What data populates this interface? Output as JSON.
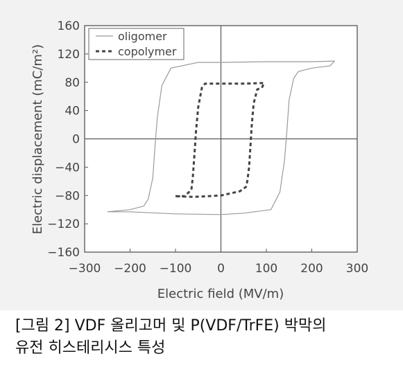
{
  "chart_data": {
    "type": "line",
    "xlabel": "Electric field (MV/m)",
    "ylabel": "Electric displacement (mC/m²)",
    "xlim": [
      -300,
      300
    ],
    "ylim": [
      -160,
      160
    ],
    "x_ticks": [
      "−300",
      "−200",
      "−100",
      "0",
      "100",
      "200",
      "300"
    ],
    "y_ticks": [
      "160",
      "120",
      "80",
      "40",
      "0",
      "−40",
      "−80",
      "−120",
      "−160"
    ],
    "legend_position": "top-left",
    "series": [
      {
        "name": "oligomer",
        "style": "solid",
        "color": "#999999",
        "x": [
          -250,
          -200,
          -170,
          -160,
          -150,
          -145,
          -140,
          -130,
          -110,
          -50,
          0,
          100,
          200,
          250,
          240,
          200,
          170,
          160,
          150,
          145,
          140,
          130,
          110,
          50,
          0,
          -100,
          -200,
          -250
        ],
        "y": [
          -103,
          -100,
          -95,
          -85,
          -55,
          -10,
          30,
          75,
          100,
          108,
          108,
          109,
          109,
          110,
          103,
          100,
          95,
          85,
          55,
          10,
          -30,
          -75,
          -100,
          -105,
          -107,
          -106,
          -103,
          -103
        ]
      },
      {
        "name": "copolymer",
        "style": "dashed",
        "color": "#444444",
        "x": [
          -100,
          -80,
          -65,
          -62,
          -58,
          -55,
          -50,
          -42,
          -35,
          0,
          50,
          95,
          90,
          80,
          72,
          68,
          65,
          62,
          58,
          55,
          50,
          42,
          0,
          -60,
          -100
        ],
        "y": [
          -81,
          -81,
          -72,
          -55,
          -20,
          10,
          45,
          72,
          78,
          78,
          78,
          79,
          72,
          70,
          50,
          20,
          -10,
          -40,
          -60,
          -68,
          -70,
          -74,
          -80,
          -82,
          -81
        ]
      }
    ]
  },
  "caption": {
    "line1": "[그림 2] VDF 올리고머 및 P(VDF/TrFE) 박막의",
    "line2": "유전 히스테리시스 특성"
  }
}
